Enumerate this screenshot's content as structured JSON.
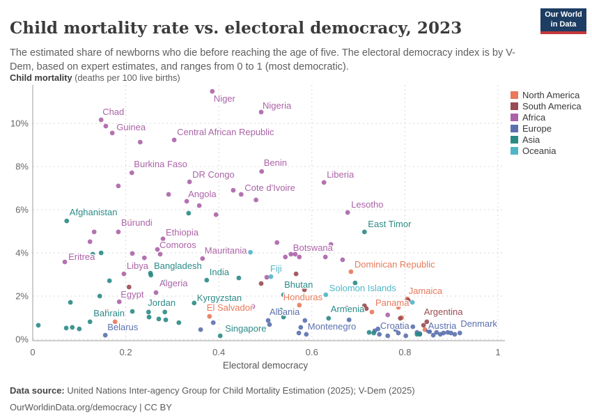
{
  "header": {
    "title": "Child mortality rate vs. electoral democracy, 2023",
    "subtitle": "The estimated share of newborns who die before reaching the age of five. The electoral democracy index is by V-Dem, based on expert estimates, and ranges from 0 to 1 (most democratic).",
    "logo": {
      "line1": "Our World",
      "line2": "in Data"
    }
  },
  "axis_heading": {
    "bold": "Child mortality",
    "rest": " (deaths per 100 live births)"
  },
  "footer": {
    "source_label": "Data source:",
    "source_text": " United Nations Inter-agency Group for Child Mortality Estimation (2025); V-Dem (2025)",
    "license_text": "OurWorldinData.org/democracy | CC BY"
  },
  "chart_data": {
    "type": "scatter",
    "title": "Child mortality rate vs. electoral democracy, 2023",
    "xlabel": "Electoral democracy",
    "ylabel": "Child mortality (deaths per 100 live births)",
    "xlim": [
      0,
      1
    ],
    "ylim": [
      0,
      11.7
    ],
    "x_ticks": [
      0,
      0.2,
      0.4,
      0.6,
      0.8,
      1
    ],
    "x_tick_labels": [
      "0",
      "0.2",
      "0.4",
      "0.6",
      "0.8",
      "1"
    ],
    "y_ticks": [
      0,
      2,
      4,
      6,
      8,
      10
    ],
    "y_tick_labels": [
      "0%",
      "2%",
      "4%",
      "6%",
      "8%",
      "10%"
    ],
    "grid": true,
    "legend_position": "right",
    "legend": [
      {
        "label": "North America",
        "color": "#e8795a"
      },
      {
        "label": "South America",
        "color": "#9a4a52"
      },
      {
        "label": "Africa",
        "color": "#ab63a7"
      },
      {
        "label": "Europe",
        "color": "#5b70ad"
      },
      {
        "label": "Asia",
        "color": "#2a8a86"
      },
      {
        "label": "Oceania",
        "color": "#4fb6c6"
      }
    ],
    "series": [
      {
        "name": "North America",
        "color": "#e8795a",
        "points": [
          {
            "x": 0.211,
            "y": 5.45
          },
          {
            "x": 0.159,
            "y": 1.29
          },
          {
            "x": 0.177,
            "y": 0.81
          },
          {
            "x": 0.684,
            "y": 3.13,
            "label": "Dominican Republic",
            "dx": 5,
            "dy": -6
          },
          {
            "x": 0.573,
            "y": 1.58,
            "label": "Honduras",
            "dx": -23,
            "dy": -7
          },
          {
            "x": 0.38,
            "y": 1.06,
            "label": "El Salvador",
            "dx": -4,
            "dy": -8
          },
          {
            "x": 0.729,
            "y": 1.26,
            "label": "Panama",
            "dx": 0,
            "dy": -9
          },
          {
            "x": 0.805,
            "y": 1.87,
            "label": "Jamaica",
            "dx": 2,
            "dy": -7
          },
          {
            "x": 0.786,
            "y": 1.48
          },
          {
            "x": 0.793,
            "y": 1.0
          },
          {
            "x": 0.843,
            "y": 0.45
          }
        ]
      },
      {
        "name": "South America",
        "color": "#9a4a52",
        "points": [
          {
            "x": 0.207,
            "y": 2.42
          },
          {
            "x": 0.491,
            "y": 2.58
          },
          {
            "x": 0.566,
            "y": 3.03
          },
          {
            "x": 0.584,
            "y": 2.29
          },
          {
            "x": 0.713,
            "y": 1.55
          },
          {
            "x": 0.717,
            "y": 1.42
          },
          {
            "x": 0.807,
            "y": 1.81
          },
          {
            "x": 0.79,
            "y": 0.97
          },
          {
            "x": 0.84,
            "y": 0.65
          },
          {
            "x": 0.847,
            "y": 0.81,
            "label": "Argentina",
            "dx": -4,
            "dy": -10
          }
        ]
      },
      {
        "name": "Africa",
        "color": "#ab63a7",
        "points": [
          {
            "x": 0.386,
            "y": 11.48,
            "label": "Niger",
            "dx": 2,
            "dy": 15
          },
          {
            "x": 0.491,
            "y": 10.52,
            "label": "Nigeria",
            "dx": 2,
            "dy": -5
          },
          {
            "x": 0.147,
            "y": 10.16,
            "label": "Chad",
            "dx": 2,
            "dy": -7
          },
          {
            "x": 0.171,
            "y": 9.55,
            "label": "Guinea",
            "dx": 6,
            "dy": -4
          },
          {
            "x": 0.157,
            "y": 9.87
          },
          {
            "x": 0.231,
            "y": 9.13
          },
          {
            "x": 0.304,
            "y": 9.23,
            "label": "Central African Republic",
            "dx": 4,
            "dy": -7
          },
          {
            "x": 0.213,
            "y": 7.71,
            "label": "Burkina Faso",
            "dx": 3,
            "dy": -8
          },
          {
            "x": 0.337,
            "y": 7.29,
            "label": "DR Congo",
            "dx": 4,
            "dy": -6
          },
          {
            "x": 0.492,
            "y": 7.77,
            "label": "Benin",
            "dx": 3,
            "dy": -8
          },
          {
            "x": 0.184,
            "y": 7.1
          },
          {
            "x": 0.292,
            "y": 6.71
          },
          {
            "x": 0.331,
            "y": 6.39,
            "label": "Angola",
            "dx": 2,
            "dy": -6
          },
          {
            "x": 0.358,
            "y": 6.19
          },
          {
            "x": 0.448,
            "y": 6.71,
            "label": "Cote d'Ivoire",
            "dx": 5,
            "dy": -5
          },
          {
            "x": 0.431,
            "y": 6.9
          },
          {
            "x": 0.48,
            "y": 6.45
          },
          {
            "x": 0.626,
            "y": 7.26,
            "label": "Liberia",
            "dx": 4,
            "dy": -7
          },
          {
            "x": 0.677,
            "y": 5.87,
            "label": "Lesotho",
            "dx": 5,
            "dy": -7
          },
          {
            "x": 0.394,
            "y": 5.77
          },
          {
            "x": 0.184,
            "y": 4.97,
            "label": "Burundi",
            "dx": 4,
            "dy": -9
          },
          {
            "x": 0.132,
            "y": 4.97
          },
          {
            "x": 0.123,
            "y": 4.52
          },
          {
            "x": 0.28,
            "y": 4.65,
            "label": "Ethiopia",
            "dx": 4,
            "dy": -5
          },
          {
            "x": 0.274,
            "y": 3.94,
            "label": "Comoros",
            "dx": -1,
            "dy": -9
          },
          {
            "x": 0.268,
            "y": 4.16
          },
          {
            "x": 0.365,
            "y": 3.74,
            "label": "Mauritania",
            "dx": 3,
            "dy": -7
          },
          {
            "x": 0.069,
            "y": 3.58,
            "label": "Eritrea",
            "dx": 5,
            "dy": -3
          },
          {
            "x": 0.214,
            "y": 3.97
          },
          {
            "x": 0.24,
            "y": 3.77
          },
          {
            "x": 0.196,
            "y": 3.03,
            "label": "Libya",
            "dx": 4,
            "dy": -7
          },
          {
            "x": 0.525,
            "y": 4.48
          },
          {
            "x": 0.573,
            "y": 3.81,
            "label": "Botswana",
            "dx": -9,
            "dy": -9
          },
          {
            "x": 0.555,
            "y": 3.94
          },
          {
            "x": 0.564,
            "y": 3.94
          },
          {
            "x": 0.543,
            "y": 3.81
          },
          {
            "x": 0.629,
            "y": 3.81
          },
          {
            "x": 0.641,
            "y": 4.39
          },
          {
            "x": 0.666,
            "y": 3.68
          },
          {
            "x": 0.503,
            "y": 2.87
          },
          {
            "x": 0.265,
            "y": 2.16,
            "label": "Algeria",
            "dx": 0,
            "dy": -9
          },
          {
            "x": 0.186,
            "y": 1.74,
            "label": "Egypt",
            "dx": 2,
            "dy": -6
          },
          {
            "x": 0.473,
            "y": 1.52
          },
          {
            "x": 0.674,
            "y": 1.45
          },
          {
            "x": 0.763,
            "y": 1.13
          }
        ]
      },
      {
        "name": "Europe",
        "color": "#5b70ad",
        "points": [
          {
            "x": 0.156,
            "y": 0.19,
            "label": "Belarus",
            "dx": 3,
            "dy": -7
          },
          {
            "x": 0.361,
            "y": 0.45
          },
          {
            "x": 0.388,
            "y": 0.77
          },
          {
            "x": 0.506,
            "y": 0.87,
            "label": "Albania",
            "dx": 2,
            "dy": -8
          },
          {
            "x": 0.509,
            "y": 0.68
          },
          {
            "x": 0.585,
            "y": 0.87,
            "label": "Montenegro",
            "dx": 4,
            "dy": 13
          },
          {
            "x": 0.576,
            "y": 0.55
          },
          {
            "x": 0.572,
            "y": 0.29
          },
          {
            "x": 0.588,
            "y": 0.23
          },
          {
            "x": 0.68,
            "y": 0.9
          },
          {
            "x": 0.735,
            "y": 0.39
          },
          {
            "x": 0.742,
            "y": 0.48
          },
          {
            "x": 0.745,
            "y": 0.23
          },
          {
            "x": 0.763,
            "y": 0.16
          },
          {
            "x": 0.78,
            "y": 0.45
          },
          {
            "x": 0.786,
            "y": 0.29
          },
          {
            "x": 0.802,
            "y": 0.16
          },
          {
            "x": 0.817,
            "y": 0.58,
            "label": "Croatia",
            "dx": -5,
            "dy": 3,
            "anchor": "end"
          },
          {
            "x": 0.826,
            "y": 0.32
          },
          {
            "x": 0.832,
            "y": 0.26
          },
          {
            "x": 0.853,
            "y": 0.35,
            "label": "Austria",
            "dx": -2,
            "dy": -4
          },
          {
            "x": 0.85,
            "y": 0.39
          },
          {
            "x": 0.861,
            "y": 0.19
          },
          {
            "x": 0.868,
            "y": 0.32
          },
          {
            "x": 0.876,
            "y": 0.23
          },
          {
            "x": 0.883,
            "y": 0.29
          },
          {
            "x": 0.892,
            "y": 0.32
          },
          {
            "x": 0.899,
            "y": 0.29
          },
          {
            "x": 0.907,
            "y": 0.23
          },
          {
            "x": 0.918,
            "y": 0.29,
            "label": "Denmark",
            "dx": 1,
            "dy": -9
          }
        ]
      },
      {
        "name": "Asia",
        "color": "#2a8a86",
        "points": [
          {
            "x": 0.073,
            "y": 5.48,
            "label": "Afghanistan",
            "dx": 4,
            "dy": -8
          },
          {
            "x": 0.335,
            "y": 5.84
          },
          {
            "x": 0.129,
            "y": 3.94
          },
          {
            "x": 0.147,
            "y": 4.0
          },
          {
            "x": 0.253,
            "y": 3.06,
            "label": "Bangladesh",
            "dx": 5,
            "dy": -6
          },
          {
            "x": 0.374,
            "y": 2.74,
            "label": "India",
            "dx": 4,
            "dy": -7
          },
          {
            "x": 0.443,
            "y": 2.84
          },
          {
            "x": 0.693,
            "y": 2.61
          },
          {
            "x": 0.713,
            "y": 4.97,
            "label": "East Timor",
            "dx": 5,
            "dy": -7
          },
          {
            "x": 0.165,
            "y": 2.71
          },
          {
            "x": 0.254,
            "y": 2.97
          },
          {
            "x": 0.284,
            "y": 2.65
          },
          {
            "x": 0.144,
            "y": 2.0
          },
          {
            "x": 0.081,
            "y": 1.71
          },
          {
            "x": 0.347,
            "y": 1.68,
            "label": "Kyrgyzstan",
            "dx": 4,
            "dy": -3
          },
          {
            "x": 0.539,
            "y": 2.06,
            "label": "Bhutan",
            "dx": 1,
            "dy": -10
          },
          {
            "x": 0.249,
            "y": 1.26,
            "label": "Jordan",
            "dx": -1,
            "dy": -9
          },
          {
            "x": 0.284,
            "y": 1.26
          },
          {
            "x": 0.25,
            "y": 1.03
          },
          {
            "x": 0.271,
            "y": 0.94
          },
          {
            "x": 0.286,
            "y": 0.9
          },
          {
            "x": 0.314,
            "y": 0.77
          },
          {
            "x": 0.214,
            "y": 1.29
          },
          {
            "x": 0.123,
            "y": 0.81,
            "label": "Bahrain",
            "dx": 0,
            "dy": -8
          },
          {
            "x": 0.012,
            "y": 0.65
          },
          {
            "x": 0.072,
            "y": 0.52
          },
          {
            "x": 0.085,
            "y": 0.55
          },
          {
            "x": 0.1,
            "y": 0.48
          },
          {
            "x": 0.403,
            "y": 0.16,
            "label": "Singapore",
            "dx": 7,
            "dy": -6
          },
          {
            "x": 0.533,
            "y": 1.35
          },
          {
            "x": 0.539,
            "y": 1.03
          },
          {
            "x": 0.636,
            "y": 0.97,
            "label": "Armenia",
            "dx": 3,
            "dy": -9
          },
          {
            "x": 0.723,
            "y": 0.32
          },
          {
            "x": 0.733,
            "y": 0.29
          },
          {
            "x": 0.826,
            "y": 0.23
          },
          {
            "x": 0.832,
            "y": 0.23
          }
        ]
      },
      {
        "name": "Oceania",
        "color": "#4fb6c6",
        "points": [
          {
            "x": 0.468,
            "y": 4.03
          },
          {
            "x": 0.512,
            "y": 2.9,
            "label": "Fiji",
            "dx": -1,
            "dy": -7
          },
          {
            "x": 0.63,
            "y": 2.06,
            "label": "Solomon Islands",
            "dx": 5,
            "dy": -5
          },
          {
            "x": 0.816,
            "y": 1.71
          }
        ]
      }
    ]
  }
}
